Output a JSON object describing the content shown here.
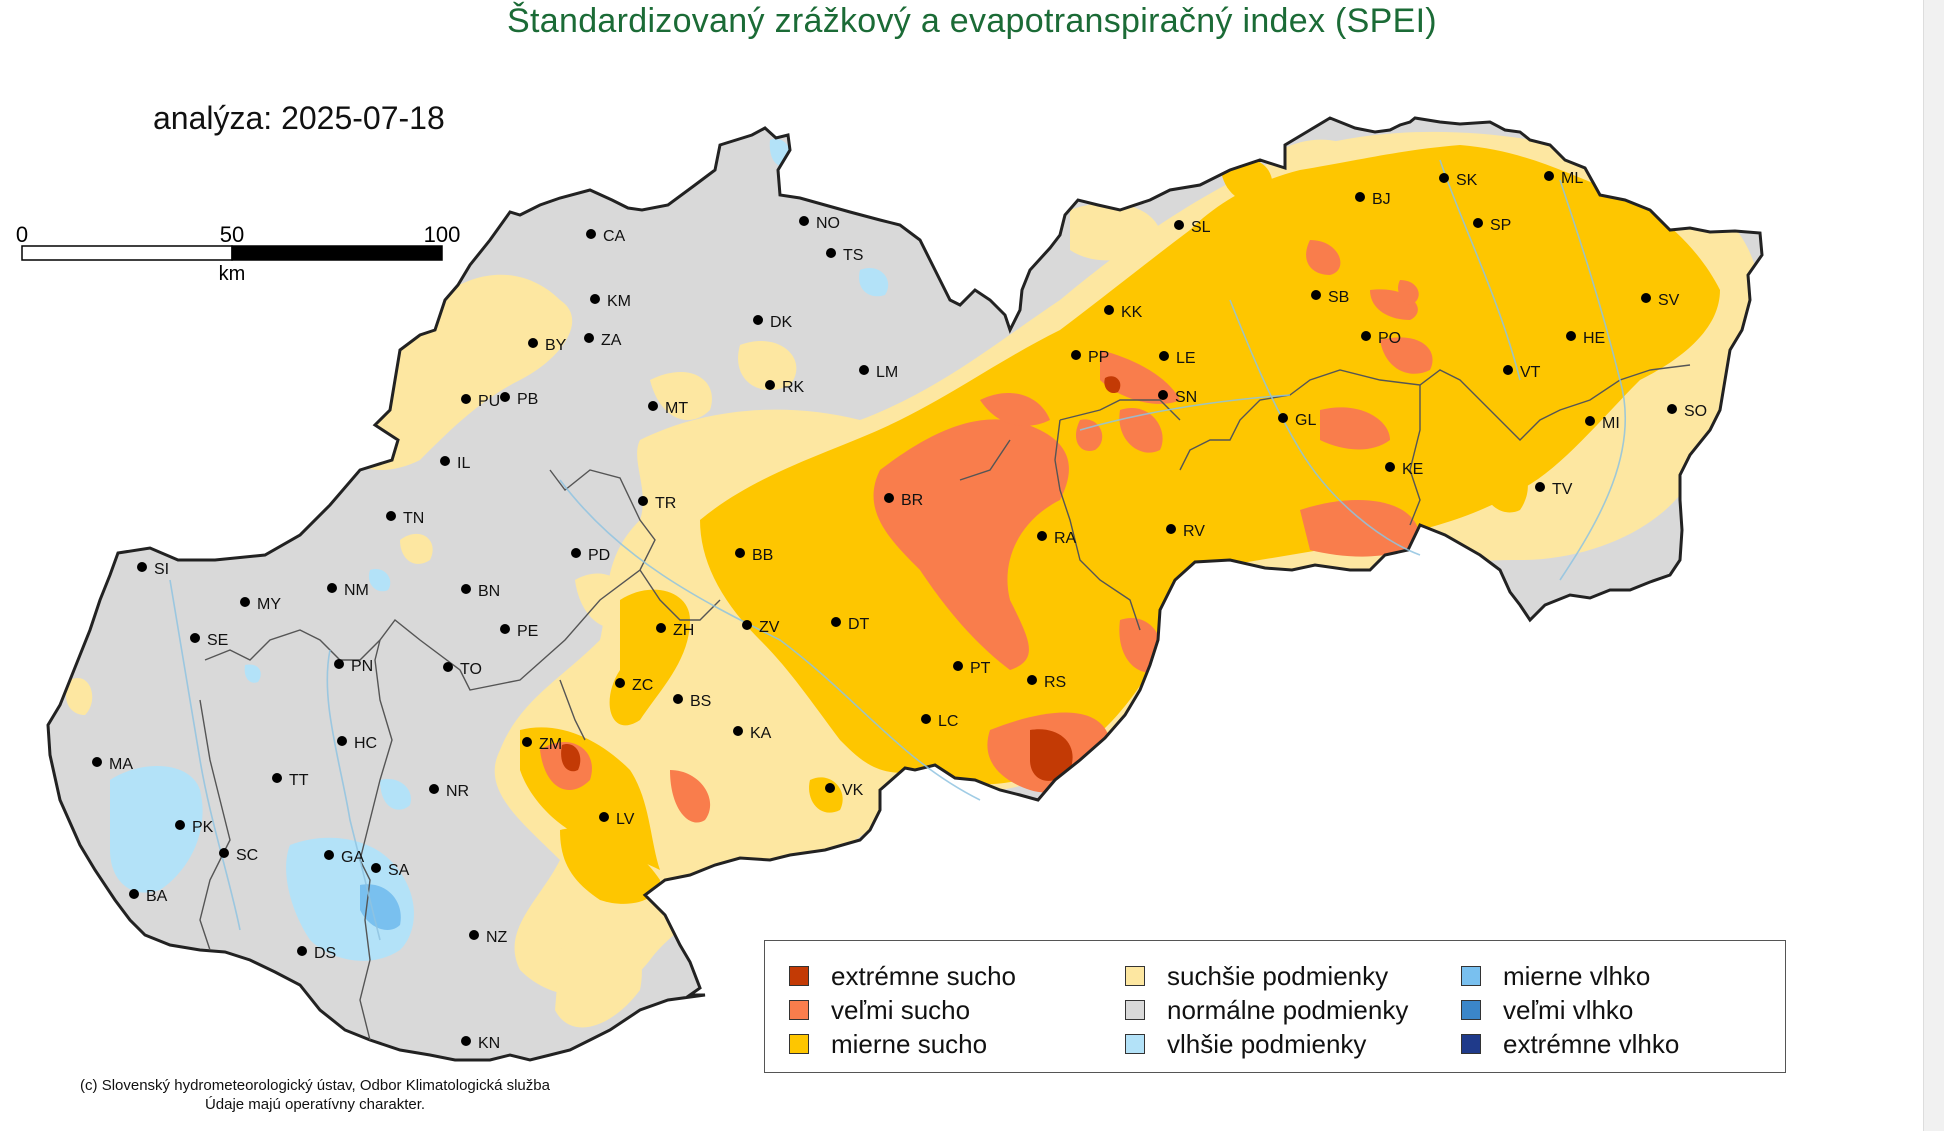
{
  "title": "Štandardizovaný zrážkový a evapotranspiračný index (SPEI)",
  "analysis_date": "analýza: 2025-07-18",
  "scale_bar": {
    "ticks": [
      "0",
      "50",
      "100"
    ],
    "unit": "km"
  },
  "colors": {
    "extreme_dry": "#c33a05",
    "very_dry": "#f97d4c",
    "moderately_dry": "#fec600",
    "drier": "#fde7a1",
    "normal": "#d9d9d9",
    "wetter": "#b3e2f8",
    "moderately_wet": "#79c0ef",
    "very_wet": "#3b86c8",
    "extreme_wet": "#1f3a8a",
    "border": "#222222",
    "title": "#1b6b36"
  },
  "legend": [
    {
      "label": "extrémne sucho",
      "color": "#c33a05"
    },
    {
      "label": "veľmi sucho",
      "color": "#f97d4c"
    },
    {
      "label": "mierne sucho",
      "color": "#fec600"
    },
    {
      "label": "suchšie podmienky",
      "color": "#fde7a1"
    },
    {
      "label": "normálne podmienky",
      "color": "#d9d9d9"
    },
    {
      "label": "vlhšie podmienky",
      "color": "#b3e2f8"
    },
    {
      "label": "mierne vlhko",
      "color": "#79c0ef"
    },
    {
      "label": "veľmi vlhko",
      "color": "#3b86c8"
    },
    {
      "label": "extrémne vlhko",
      "color": "#1f3a8a"
    }
  ],
  "stations": [
    "CA",
    "NO",
    "TS",
    "KM",
    "BY",
    "ZA",
    "DK",
    "LM",
    "PU",
    "PB",
    "MT",
    "RK",
    "IL",
    "TN",
    "TR",
    "PD",
    "BB",
    "SI",
    "MY",
    "NM",
    "BN",
    "SE",
    "PE",
    "PN",
    "TO",
    "ZH",
    "ZV",
    "DT",
    "ZC",
    "BS",
    "ZM",
    "KA",
    "HC",
    "TT",
    "MA",
    "NR",
    "LV",
    "VK",
    "PK",
    "SC",
    "GA",
    "SA",
    "BA",
    "DS",
    "NZ",
    "KN",
    "SL",
    "KK",
    "PP",
    "LE",
    "SN",
    "BR",
    "RA",
    "PT",
    "RS",
    "LC",
    "BJ",
    "SK",
    "ML",
    "SP",
    "SB",
    "PO",
    "HE",
    "SV",
    "VT",
    "GL",
    "KE",
    "MI",
    "SO",
    "TV",
    "RV"
  ],
  "credits": [
    "(c) Slovenský hydrometeorologický ústav, Odbor Klimatologická služba",
    "Údaje majú operatívny charakter."
  ]
}
